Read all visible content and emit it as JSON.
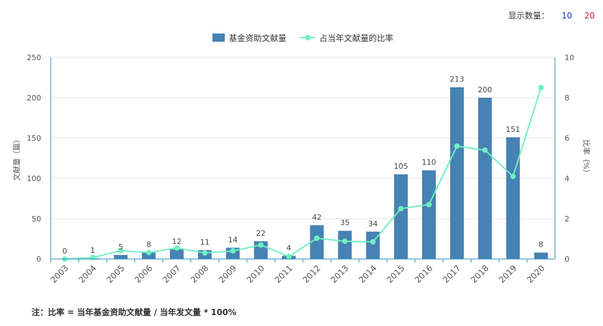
{
  "display_control": {
    "label": "显示数量：",
    "options": [
      "10",
      "20"
    ],
    "colors": [
      "#2222cc",
      "#cc2222"
    ]
  },
  "footnote": "注：比率 = 当年基金资助文献量 / 当年发文量 * 100%",
  "chart_data": {
    "type": "bar+line",
    "categories": [
      "2003",
      "2004",
      "2005",
      "2006",
      "2007",
      "2008",
      "2009",
      "2010",
      "2011",
      "2012",
      "2013",
      "2014",
      "2015",
      "2016",
      "2017",
      "2018",
      "2019",
      "2020"
    ],
    "series": [
      {
        "name": "基金资助文献量",
        "type": "bar",
        "axis": "left",
        "color": "#4682b4",
        "values": [
          0,
          1,
          5,
          8,
          12,
          11,
          14,
          22,
          4,
          42,
          35,
          34,
          105,
          110,
          213,
          200,
          151,
          8
        ]
      },
      {
        "name": "占当年文献量的比率",
        "type": "line",
        "axis": "right",
        "color": "#6ef0c0",
        "values": [
          0,
          0.07,
          0.42,
          0.32,
          0.55,
          0.3,
          0.4,
          0.7,
          0.12,
          1.03,
          0.88,
          0.85,
          2.5,
          2.7,
          5.6,
          5.4,
          4.1,
          8.5
        ]
      }
    ],
    "y_left": {
      "label": "文献量（篇）",
      "ticks": [
        "0",
        "50",
        "100",
        "150",
        "200",
        "250"
      ],
      "range": [
        0,
        250
      ]
    },
    "y_right": {
      "label": "比率（%）",
      "ticks": [
        "0",
        "2",
        "4",
        "6",
        "8",
        "10"
      ],
      "range": [
        0,
        10
      ]
    },
    "legend": "top-center",
    "grid": true
  }
}
